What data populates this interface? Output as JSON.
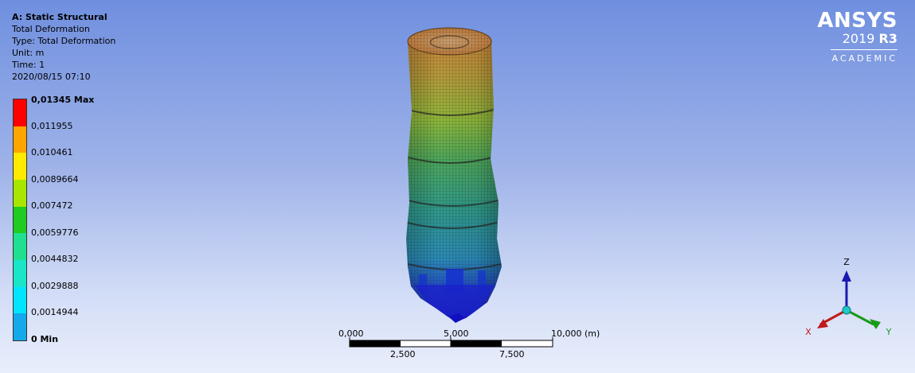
{
  "info": {
    "title": "A: Static Structural",
    "line1": "Total Deformation",
    "line2": "Type: Total Deformation",
    "line3": "Unit: m",
    "line4": "Time: 1",
    "line5": "2020/08/15 07:10"
  },
  "legend": {
    "labels": [
      "0,01345 Max",
      "0,011955",
      "0,010461",
      "0,0089664",
      "0,007472",
      "0,0059776",
      "0,0044832",
      "0,0029888",
      "0,0014944",
      "0 Min"
    ],
    "colors": [
      "#ff0000",
      "#ffa500",
      "#ffea00",
      "#a8e600",
      "#1fcc1f",
      "#1fe090",
      "#19e5c8",
      "#00e5ff",
      "#14a9ea",
      "#0000ff"
    ]
  },
  "logo": {
    "brand": "ANSYS",
    "version_year": "2019",
    "version_release": "R3",
    "edition": "ACADEMIC"
  },
  "scale": {
    "top_labels": [
      "0,000",
      "5,000",
      "10,000 (m)"
    ],
    "bottom_labels": [
      "2,500",
      "7,500"
    ]
  },
  "triad": {
    "x": "X",
    "y": "Y",
    "z": "Z"
  }
}
